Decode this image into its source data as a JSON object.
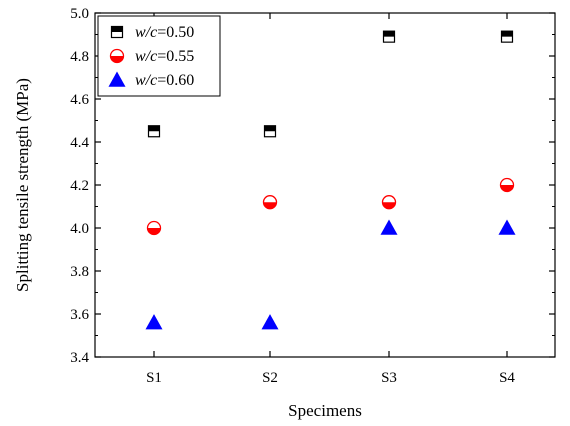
{
  "chart_data": {
    "type": "scatter",
    "title": "",
    "xlabel": "Specimens",
    "ylabel": "Splitting tensile strength (MPa)",
    "categories": [
      "S1",
      "S2",
      "S3",
      "S4"
    ],
    "ylim": [
      3.4,
      5.0
    ],
    "yticks": [
      3.4,
      3.6,
      3.8,
      4.0,
      4.2,
      4.4,
      4.6,
      4.8,
      5.0
    ],
    "ytick_labels": [
      "3.4",
      "3.6",
      "3.8",
      "4.0",
      "4.2",
      "4.4",
      "4.6",
      "4.8",
      "5.0"
    ],
    "grid": false,
    "legend_position": "top-left",
    "series": [
      {
        "name": "w/c=0.50",
        "legend_prefix": "w/c",
        "legend_value": "=0.50",
        "marker": "half-filled-square",
        "color": "#000000",
        "values": [
          4.45,
          4.45,
          4.89,
          4.89
        ]
      },
      {
        "name": "w/c=0.55",
        "legend_prefix": "w/c",
        "legend_value": "=0.55",
        "marker": "half-filled-circle",
        "color": "#ff0000",
        "values": [
          4.0,
          4.12,
          4.12,
          4.2
        ]
      },
      {
        "name": "w/c=0.60",
        "legend_prefix": "w/c",
        "legend_value": "=0.60",
        "marker": "triangle",
        "color": "#0000ff",
        "values": [
          3.56,
          3.56,
          4.0,
          4.0
        ]
      }
    ]
  }
}
